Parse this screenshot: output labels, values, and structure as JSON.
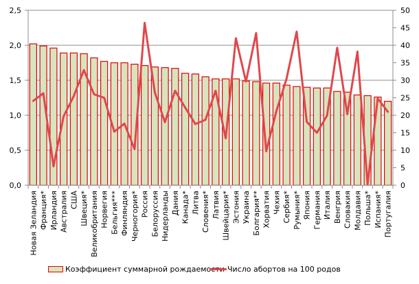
{
  "chart_data": {
    "type": "bar+line",
    "title": "",
    "categories": [
      "Новая Зеландия",
      "Франция*",
      "Ирландия",
      "Австралия",
      "США",
      "Швеция*",
      "Великобритания",
      "Норвегия",
      "Бельгия***",
      "Финляндия",
      "Черногория*",
      "Россия",
      "Белоруссия",
      "Нидерланды",
      "Дания",
      "Канада*",
      "Литва",
      "Словения*",
      "Латвия",
      "Швейцария*",
      "Эстония",
      "Украина",
      "Болгария**",
      "Хорватия",
      "Чехия",
      "Сербия*",
      "Румыния*",
      "Япония",
      "Германия",
      "Италия",
      "Венгрия",
      "Словакия",
      "Молдавия",
      "Польша*",
      "Испания*",
      "Португалия"
    ],
    "series": [
      {
        "name": "Коэффициент суммарной рождаемости",
        "type": "bar",
        "axis": "left",
        "color": "#d7e4bd",
        "border_color": "#e00000",
        "values": [
          2.02,
          1.99,
          1.96,
          1.89,
          1.89,
          1.88,
          1.82,
          1.77,
          1.75,
          1.75,
          1.73,
          1.71,
          1.69,
          1.68,
          1.67,
          1.6,
          1.59,
          1.55,
          1.52,
          1.52,
          1.52,
          1.49,
          1.48,
          1.46,
          1.46,
          1.43,
          1.41,
          1.4,
          1.39,
          1.39,
          1.34,
          1.33,
          1.29,
          1.28,
          1.26,
          1.2
        ]
      },
      {
        "name": "Число абортов на 100 родов",
        "type": "line",
        "axis": "right",
        "color": "#e0474c",
        "values": [
          24.1,
          26.3,
          5.4,
          19.7,
          25.5,
          32.9,
          26.0,
          25.0,
          15.3,
          17.6,
          10.3,
          46.4,
          26.5,
          18.0,
          27.0,
          22.2,
          17.5,
          18.7,
          27.0,
          13.4,
          42.0,
          29.6,
          43.5,
          9.7,
          21.2,
          30.4,
          43.9,
          18.1,
          15.0,
          19.9,
          39.3,
          20.3,
          38.2,
          0.3,
          24.8,
          21.0
        ]
      }
    ],
    "left_axis": {
      "min": 0,
      "max": 2.5,
      "step": 0.5,
      "tick_labels": [
        "0,0",
        "0,5",
        "1,0",
        "1,5",
        "2,0",
        "2,5"
      ]
    },
    "right_axis": {
      "min": 0,
      "max": 50,
      "step": 5,
      "tick_labels": [
        "0",
        "5",
        "10",
        "15",
        "20",
        "25",
        "30",
        "35",
        "40",
        "45",
        "50"
      ]
    },
    "grid": true,
    "legend_position": "bottom",
    "xlabel": "",
    "ylabel": ""
  },
  "legend": {
    "bar_label": "Коэффициент  суммарной рождаемости",
    "line_label": "Число абортов на 100 родов"
  }
}
